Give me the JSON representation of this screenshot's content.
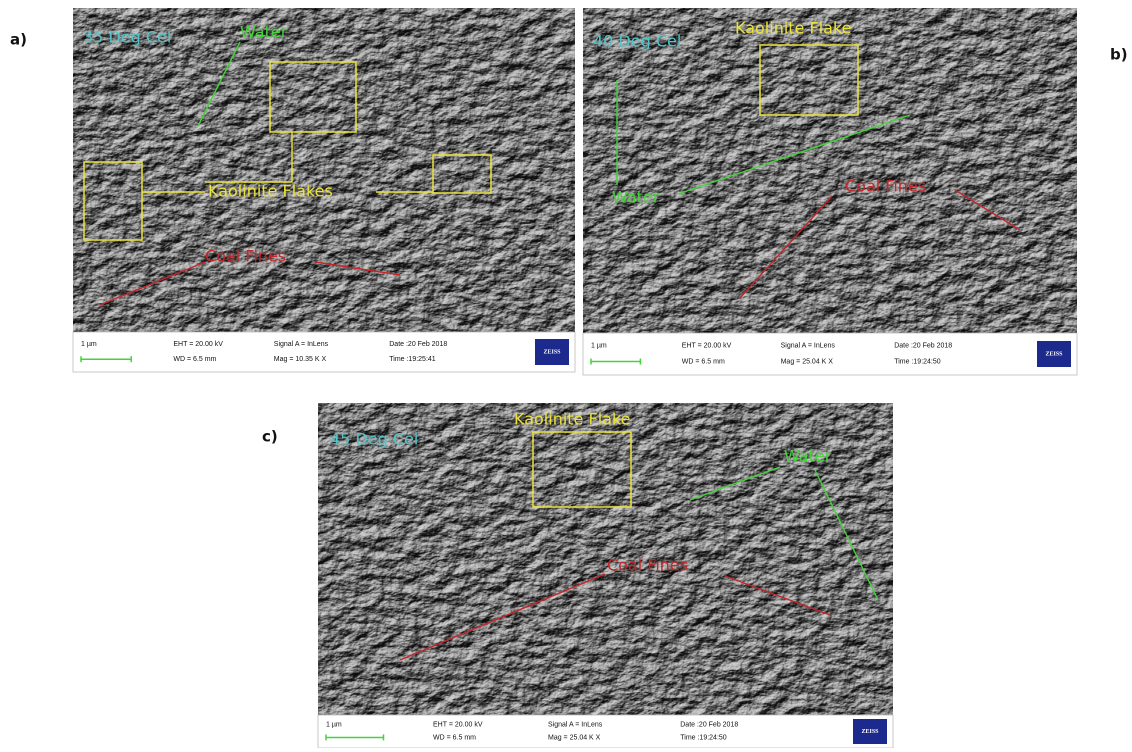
{
  "panels": [
    {
      "label": "a)",
      "condition": "35 Deg Cel",
      "annotations": [
        "Water",
        "Kaolinite Flakes",
        "Coal Fines"
      ],
      "info": {
        "scale": "1 µm",
        "eht": "EHT = 20.00 kV",
        "wd": "WD = 6.5 mm",
        "signal": "Signal A = InLens",
        "mag": "Mag = 10.35 K X",
        "date": "Date :20 Feb 2018",
        "time": "Time :19:25:41",
        "logo": "ZEISS"
      }
    },
    {
      "label": "b)",
      "condition": "40 Deg Cel",
      "annotations": [
        "Kaolinite Flake",
        "Water",
        "Coal Fines"
      ],
      "info": {
        "scale": "1 µm",
        "eht": "EHT = 20.00 kV",
        "wd": "WD = 6.5 mm",
        "signal": "Signal A = InLens",
        "mag": "Mag = 25.04 K X",
        "date": "Date :20 Feb 2018",
        "time": "Time :19:24:50",
        "logo": "ZEISS"
      }
    },
    {
      "label": "c)",
      "condition": "45 Deg Cel",
      "annotations": [
        "Kaolinite Flake",
        "Water",
        "Coal Fines"
      ],
      "info": {
        "scale": "1 µm",
        "eht": "EHT = 20.00 kV",
        "wd": "WD = 6.5 mm",
        "signal": "Signal A = InLens",
        "mag": "Mag = 25.04 K X",
        "date": "Date :20 Feb 2018",
        "time": "Time :19:24:50",
        "logo": "ZEISS"
      }
    }
  ]
}
